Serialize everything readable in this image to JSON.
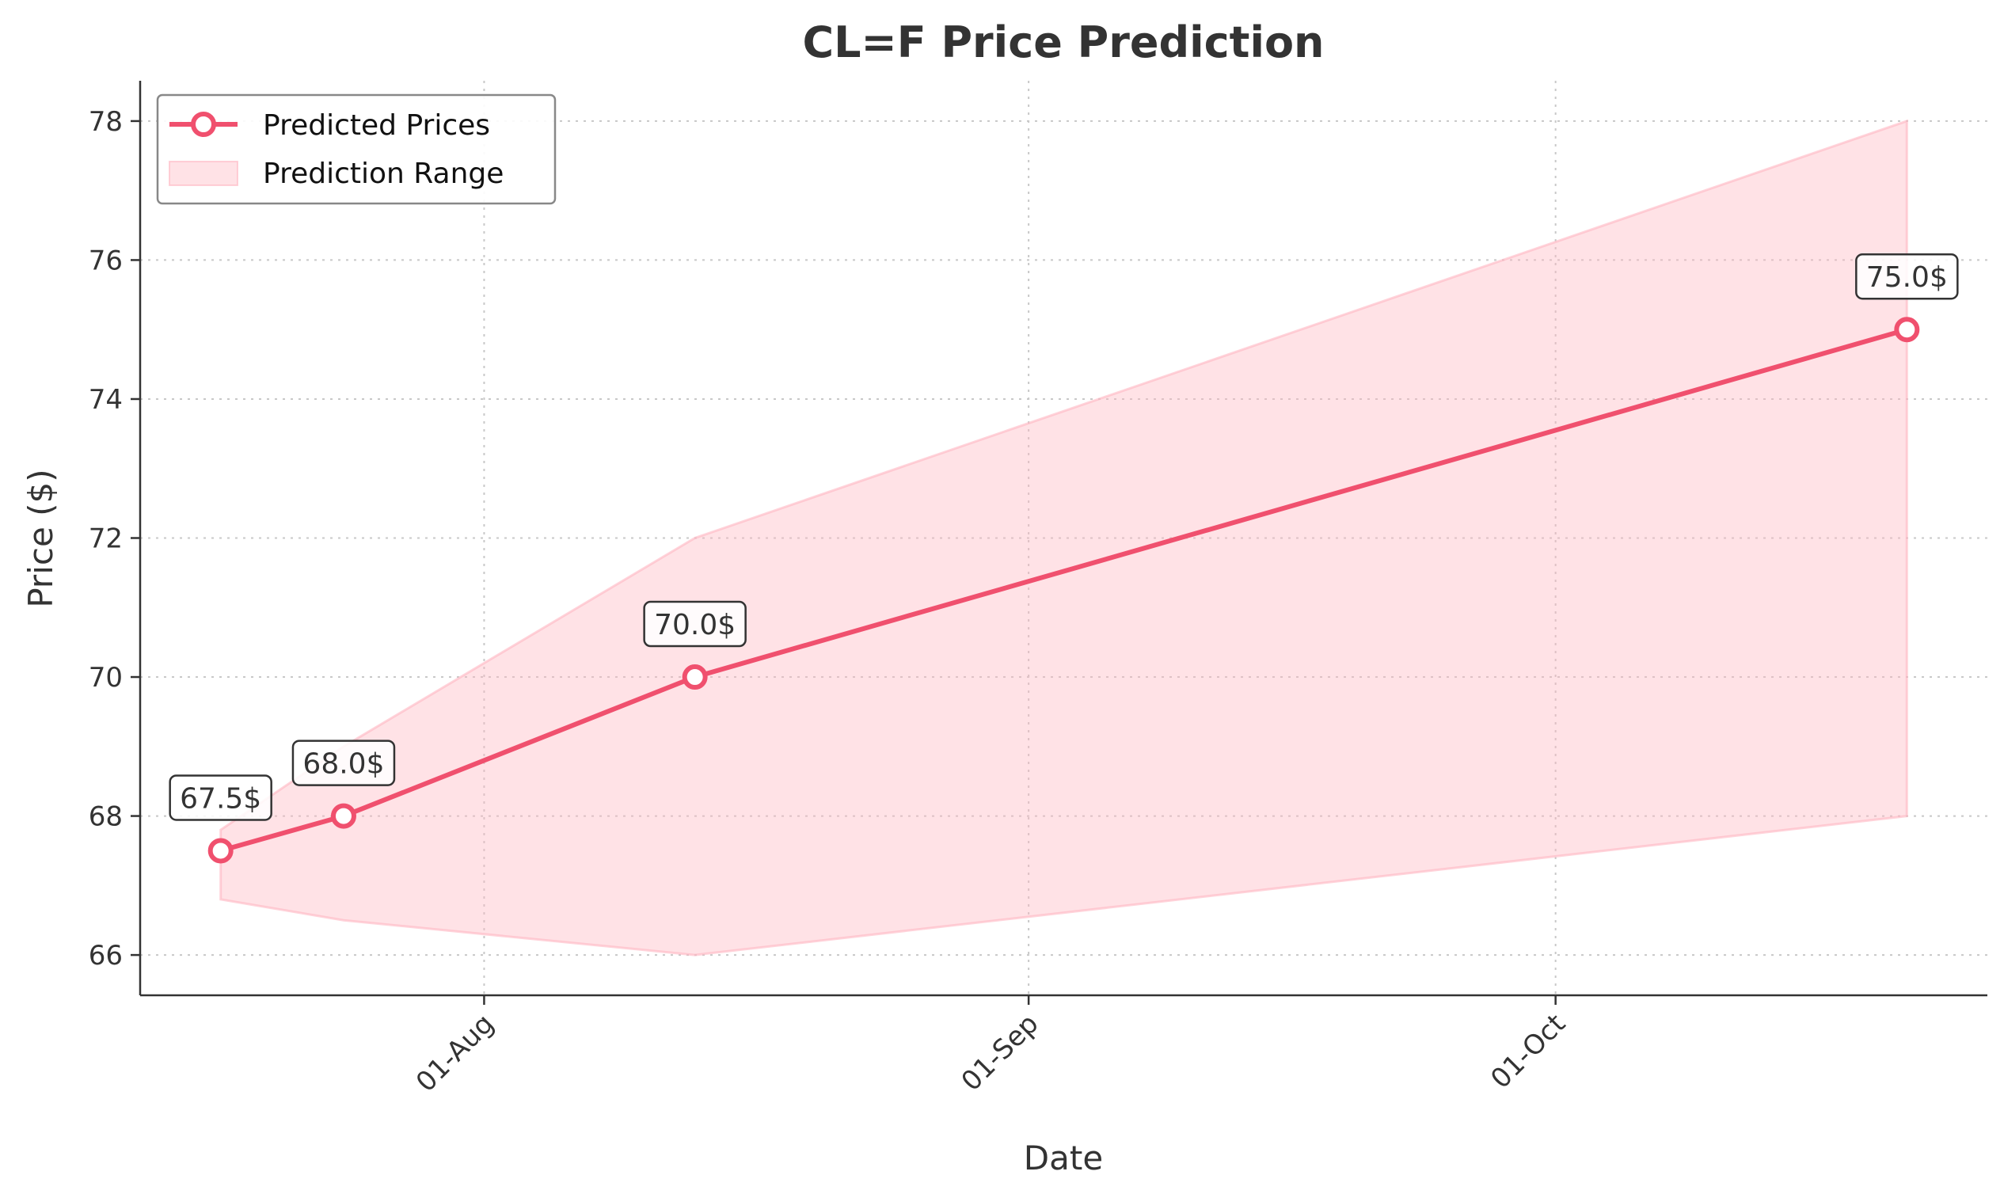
{
  "chart_data": {
    "type": "line",
    "title": "CL=F Price Prediction",
    "xlabel": "Date",
    "ylabel": "Price ($)",
    "x": [
      "2024-07-17",
      "2024-07-24",
      "2024-08-13",
      "2024-10-21"
    ],
    "series": [
      {
        "name": "Predicted Prices",
        "values": [
          67.5,
          68.0,
          70.0,
          75.0
        ],
        "color": "#F0506E"
      }
    ],
    "range": {
      "name": "Prediction Range",
      "upper": [
        67.8,
        69.0,
        72.0,
        78.0
      ],
      "lower": [
        66.8,
        66.5,
        66.0,
        68.0
      ],
      "color": "#FFB6C1"
    },
    "annotations": [
      "67.5$",
      "68.0$",
      "70.0$",
      "75.0$"
    ],
    "xticks": [
      {
        "date": "2024-08-01",
        "label": "01-Aug"
      },
      {
        "date": "2024-09-01",
        "label": "01-Sep"
      },
      {
        "date": "2024-10-01",
        "label": "01-Oct"
      }
    ],
    "yticks": [
      66,
      68,
      70,
      72,
      74,
      76,
      78
    ],
    "ylim": [
      65.42,
      78.58
    ],
    "xlim": [
      "2024-07-12T10:00",
      "2024-10-25T14:00"
    ],
    "grid": true,
    "legend_position": "top-left"
  }
}
